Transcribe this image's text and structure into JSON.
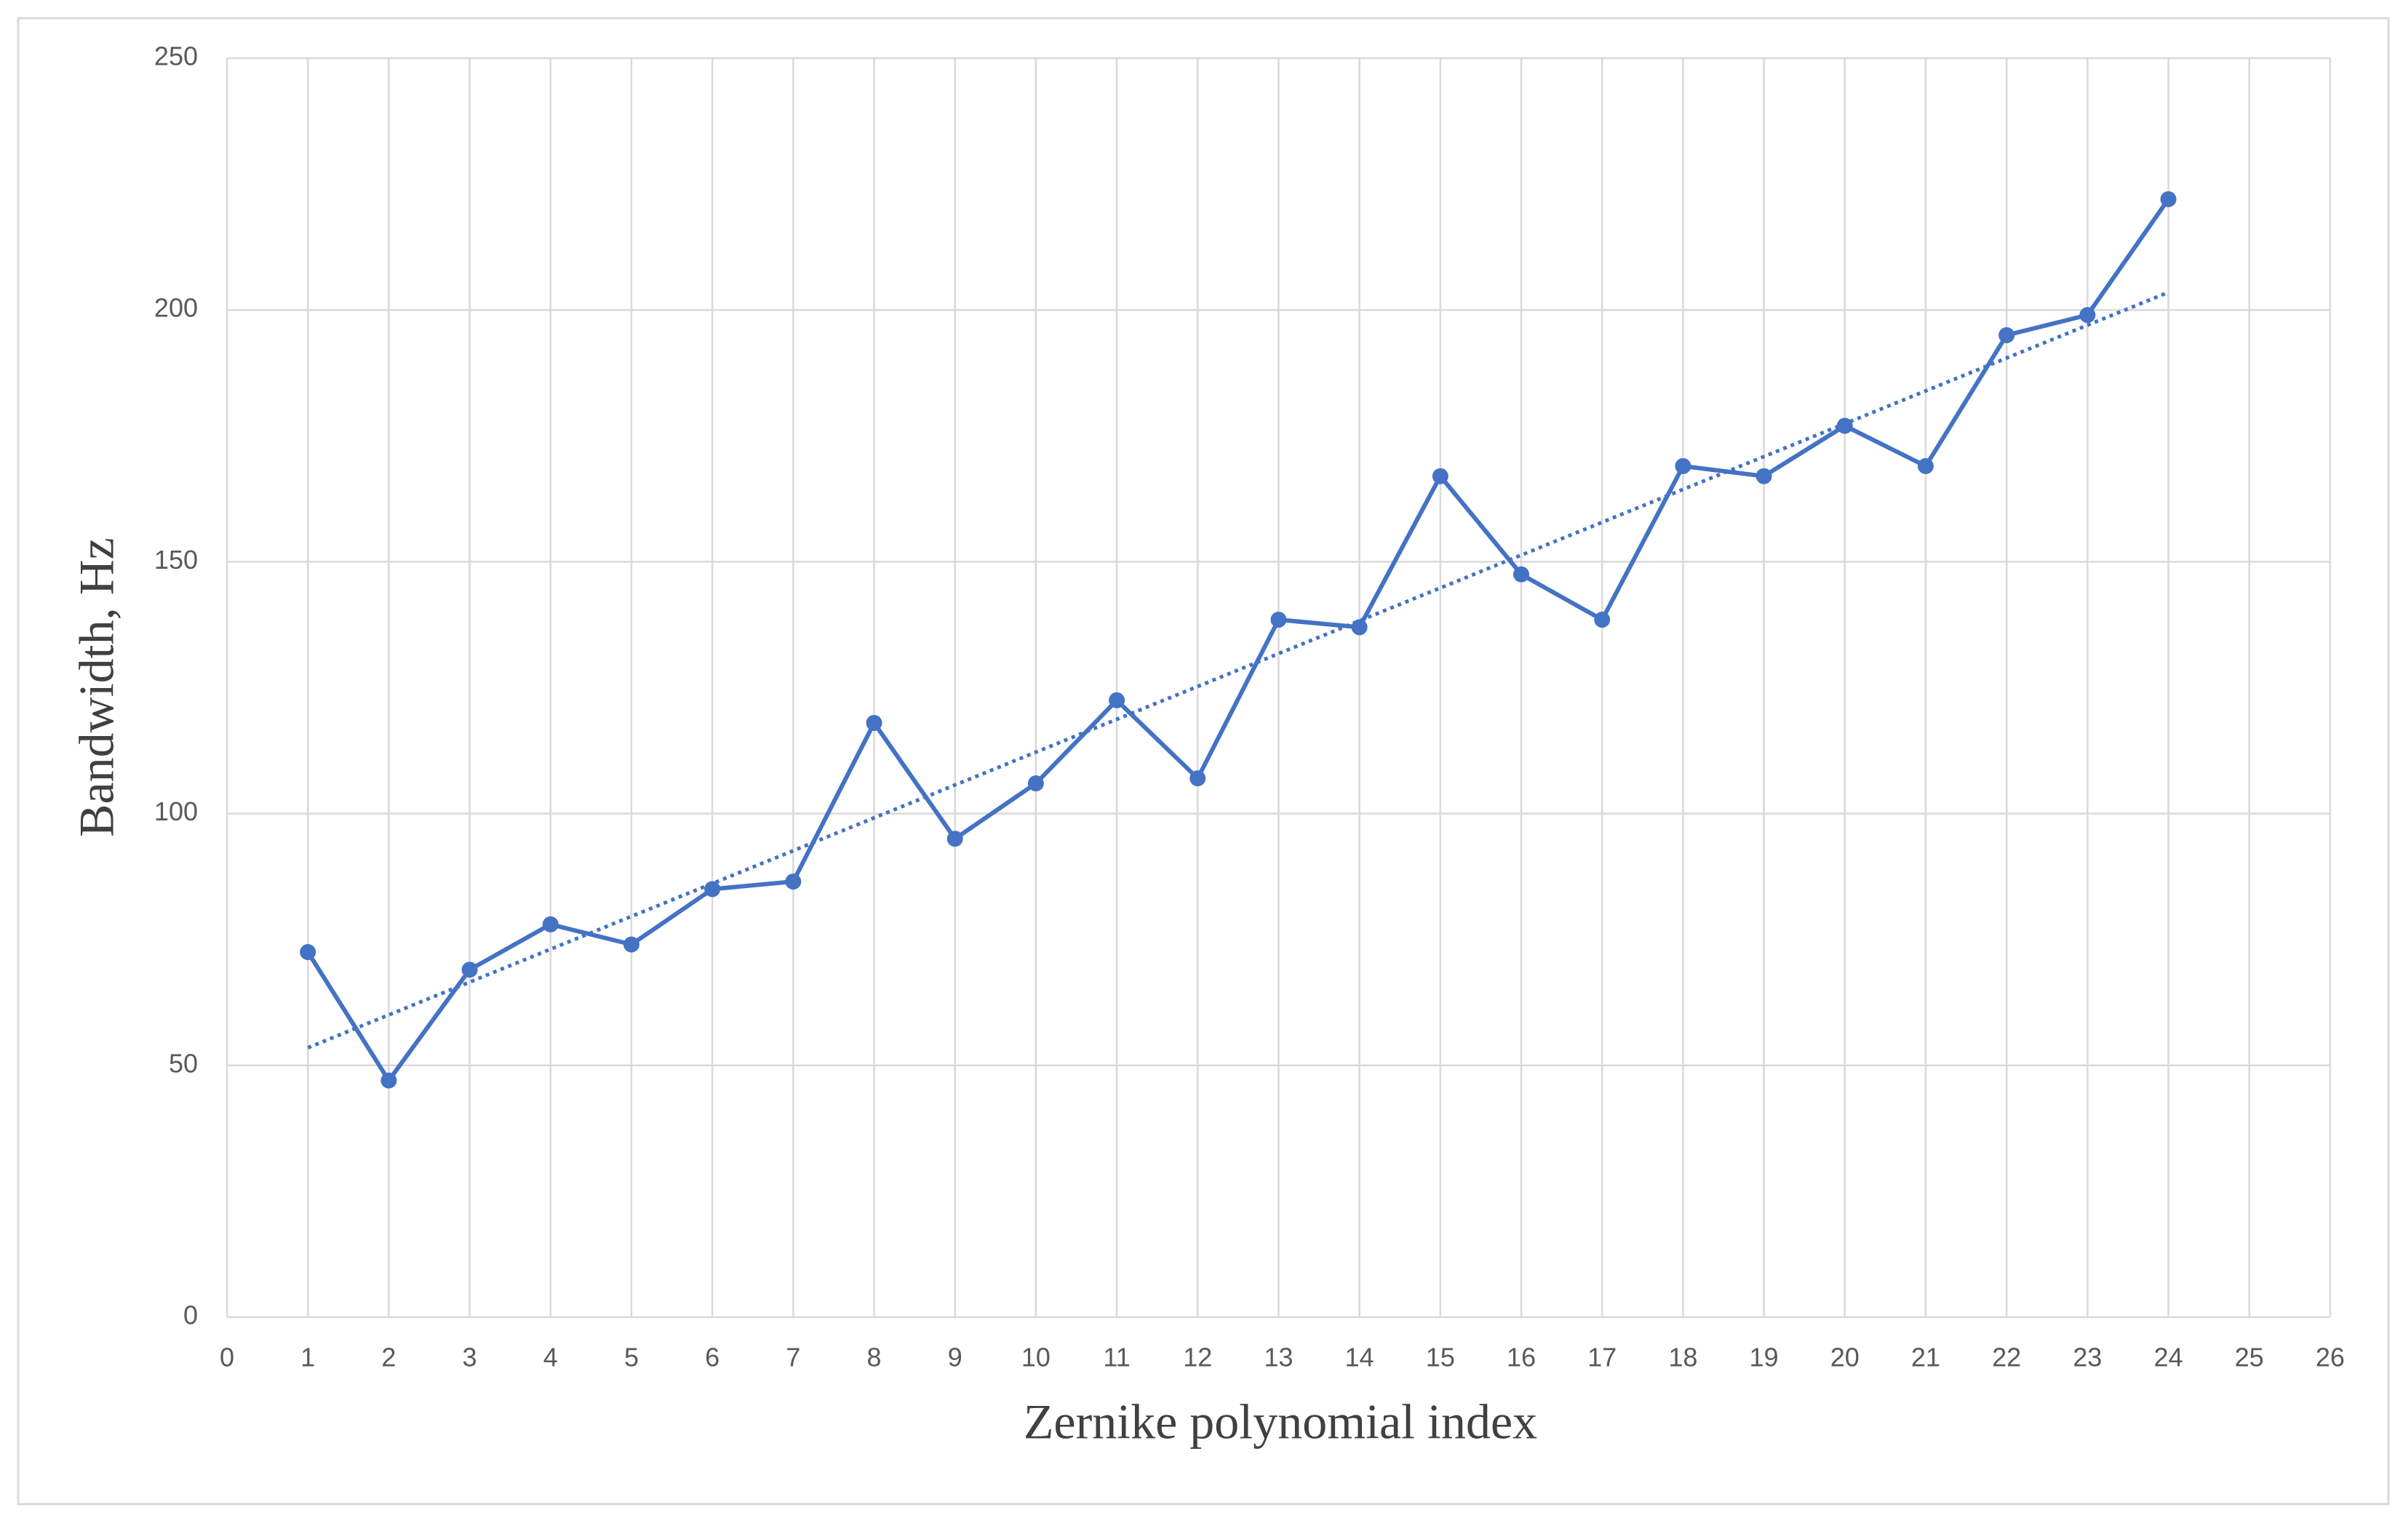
{
  "chart_data": {
    "type": "line",
    "x_label": "Zernike polynomial index",
    "y_label": "Bandwidth, Hz",
    "x": [
      1,
      2,
      3,
      4,
      5,
      6,
      7,
      8,
      9,
      10,
      11,
      12,
      13,
      14,
      15,
      16,
      17,
      18,
      19,
      20,
      21,
      22,
      23,
      24
    ],
    "series": [
      {
        "color": "#4472c4",
        "marker": true,
        "values": [
          72.5,
          47,
          69,
          78,
          74,
          85,
          86.5,
          118,
          95,
          106,
          122.5,
          107,
          138.5,
          137,
          167,
          147.5,
          138.5,
          169,
          167,
          177,
          169,
          195,
          199,
          222
        ]
      }
    ],
    "trendline": {
      "x": [
        1,
        24
      ],
      "values": [
        53.5,
        203.5
      ],
      "color": "#4472c4",
      "dash": "dotted"
    },
    "xlim": [
      0,
      26
    ],
    "xticks": [
      0,
      1,
      2,
      3,
      4,
      5,
      6,
      7,
      8,
      9,
      10,
      11,
      12,
      13,
      14,
      15,
      16,
      17,
      18,
      19,
      20,
      21,
      22,
      23,
      24,
      25,
      26
    ],
    "ylim": [
      0,
      250
    ],
    "yticks": [
      0,
      50,
      100,
      150,
      200,
      250
    ],
    "grid": true
  }
}
